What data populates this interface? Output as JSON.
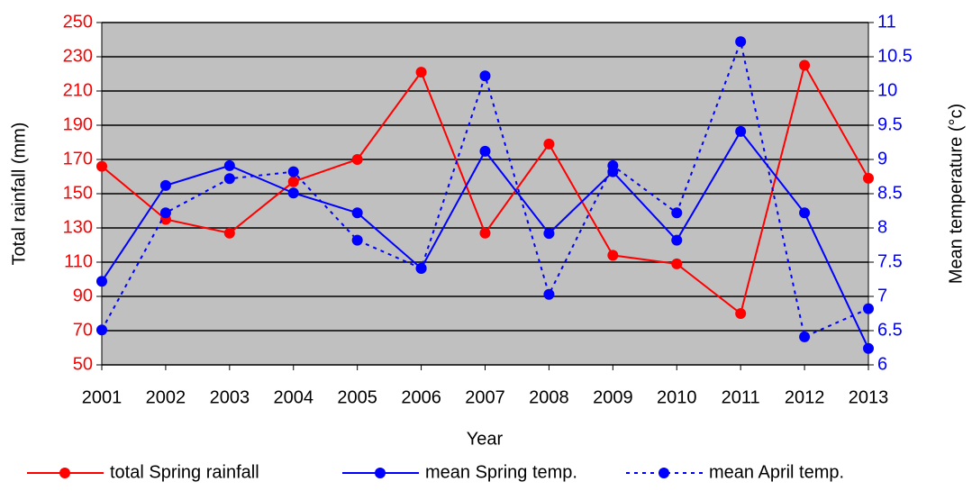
{
  "chart_data": {
    "type": "line",
    "categories": [
      "2001",
      "2002",
      "2003",
      "2004",
      "2005",
      "2006",
      "2007",
      "2008",
      "2009",
      "2010",
      "2011",
      "2012",
      "2013"
    ],
    "xlabel": "Year",
    "ylabel": "Total rainfall (mm)",
    "y2label": "Mean temperature (°c)",
    "ylim": [
      50,
      250
    ],
    "yticks": [
      50,
      70,
      90,
      110,
      130,
      150,
      170,
      190,
      210,
      230,
      250
    ],
    "y2lim": [
      6,
      11
    ],
    "y2ticks": [
      6,
      6.5,
      7,
      7.5,
      8,
      8.5,
      9,
      9.5,
      10,
      10.5,
      11
    ],
    "ycolor": "#ff0000",
    "y2color": "#0000ff",
    "grid": true,
    "legend": "bottom",
    "series": [
      {
        "name": "total Spring rainfall",
        "color": "#ff0000",
        "dashed": false,
        "values": [
          166,
          135,
          127,
          157,
          170,
          221,
          127,
          179,
          114,
          109,
          80,
          225,
          159
        ]
      },
      {
        "name": "mean Spring temp.",
        "color": "#0000ff",
        "axis": "y2",
        "dashed": false,
        "values": [
          7.22,
          8.62,
          8.91,
          8.51,
          8.22,
          7.41,
          9.12,
          7.92,
          8.82,
          7.82,
          9.41,
          8.22,
          6.24
        ]
      },
      {
        "name": "mean April temp.",
        "color": "#0000ff",
        "axis": "y2",
        "dashed": true,
        "values": [
          6.51,
          8.22,
          8.72,
          8.82,
          7.82,
          7.41,
          10.22,
          7.03,
          8.91,
          8.22,
          10.72,
          6.41,
          6.82
        ]
      }
    ]
  }
}
